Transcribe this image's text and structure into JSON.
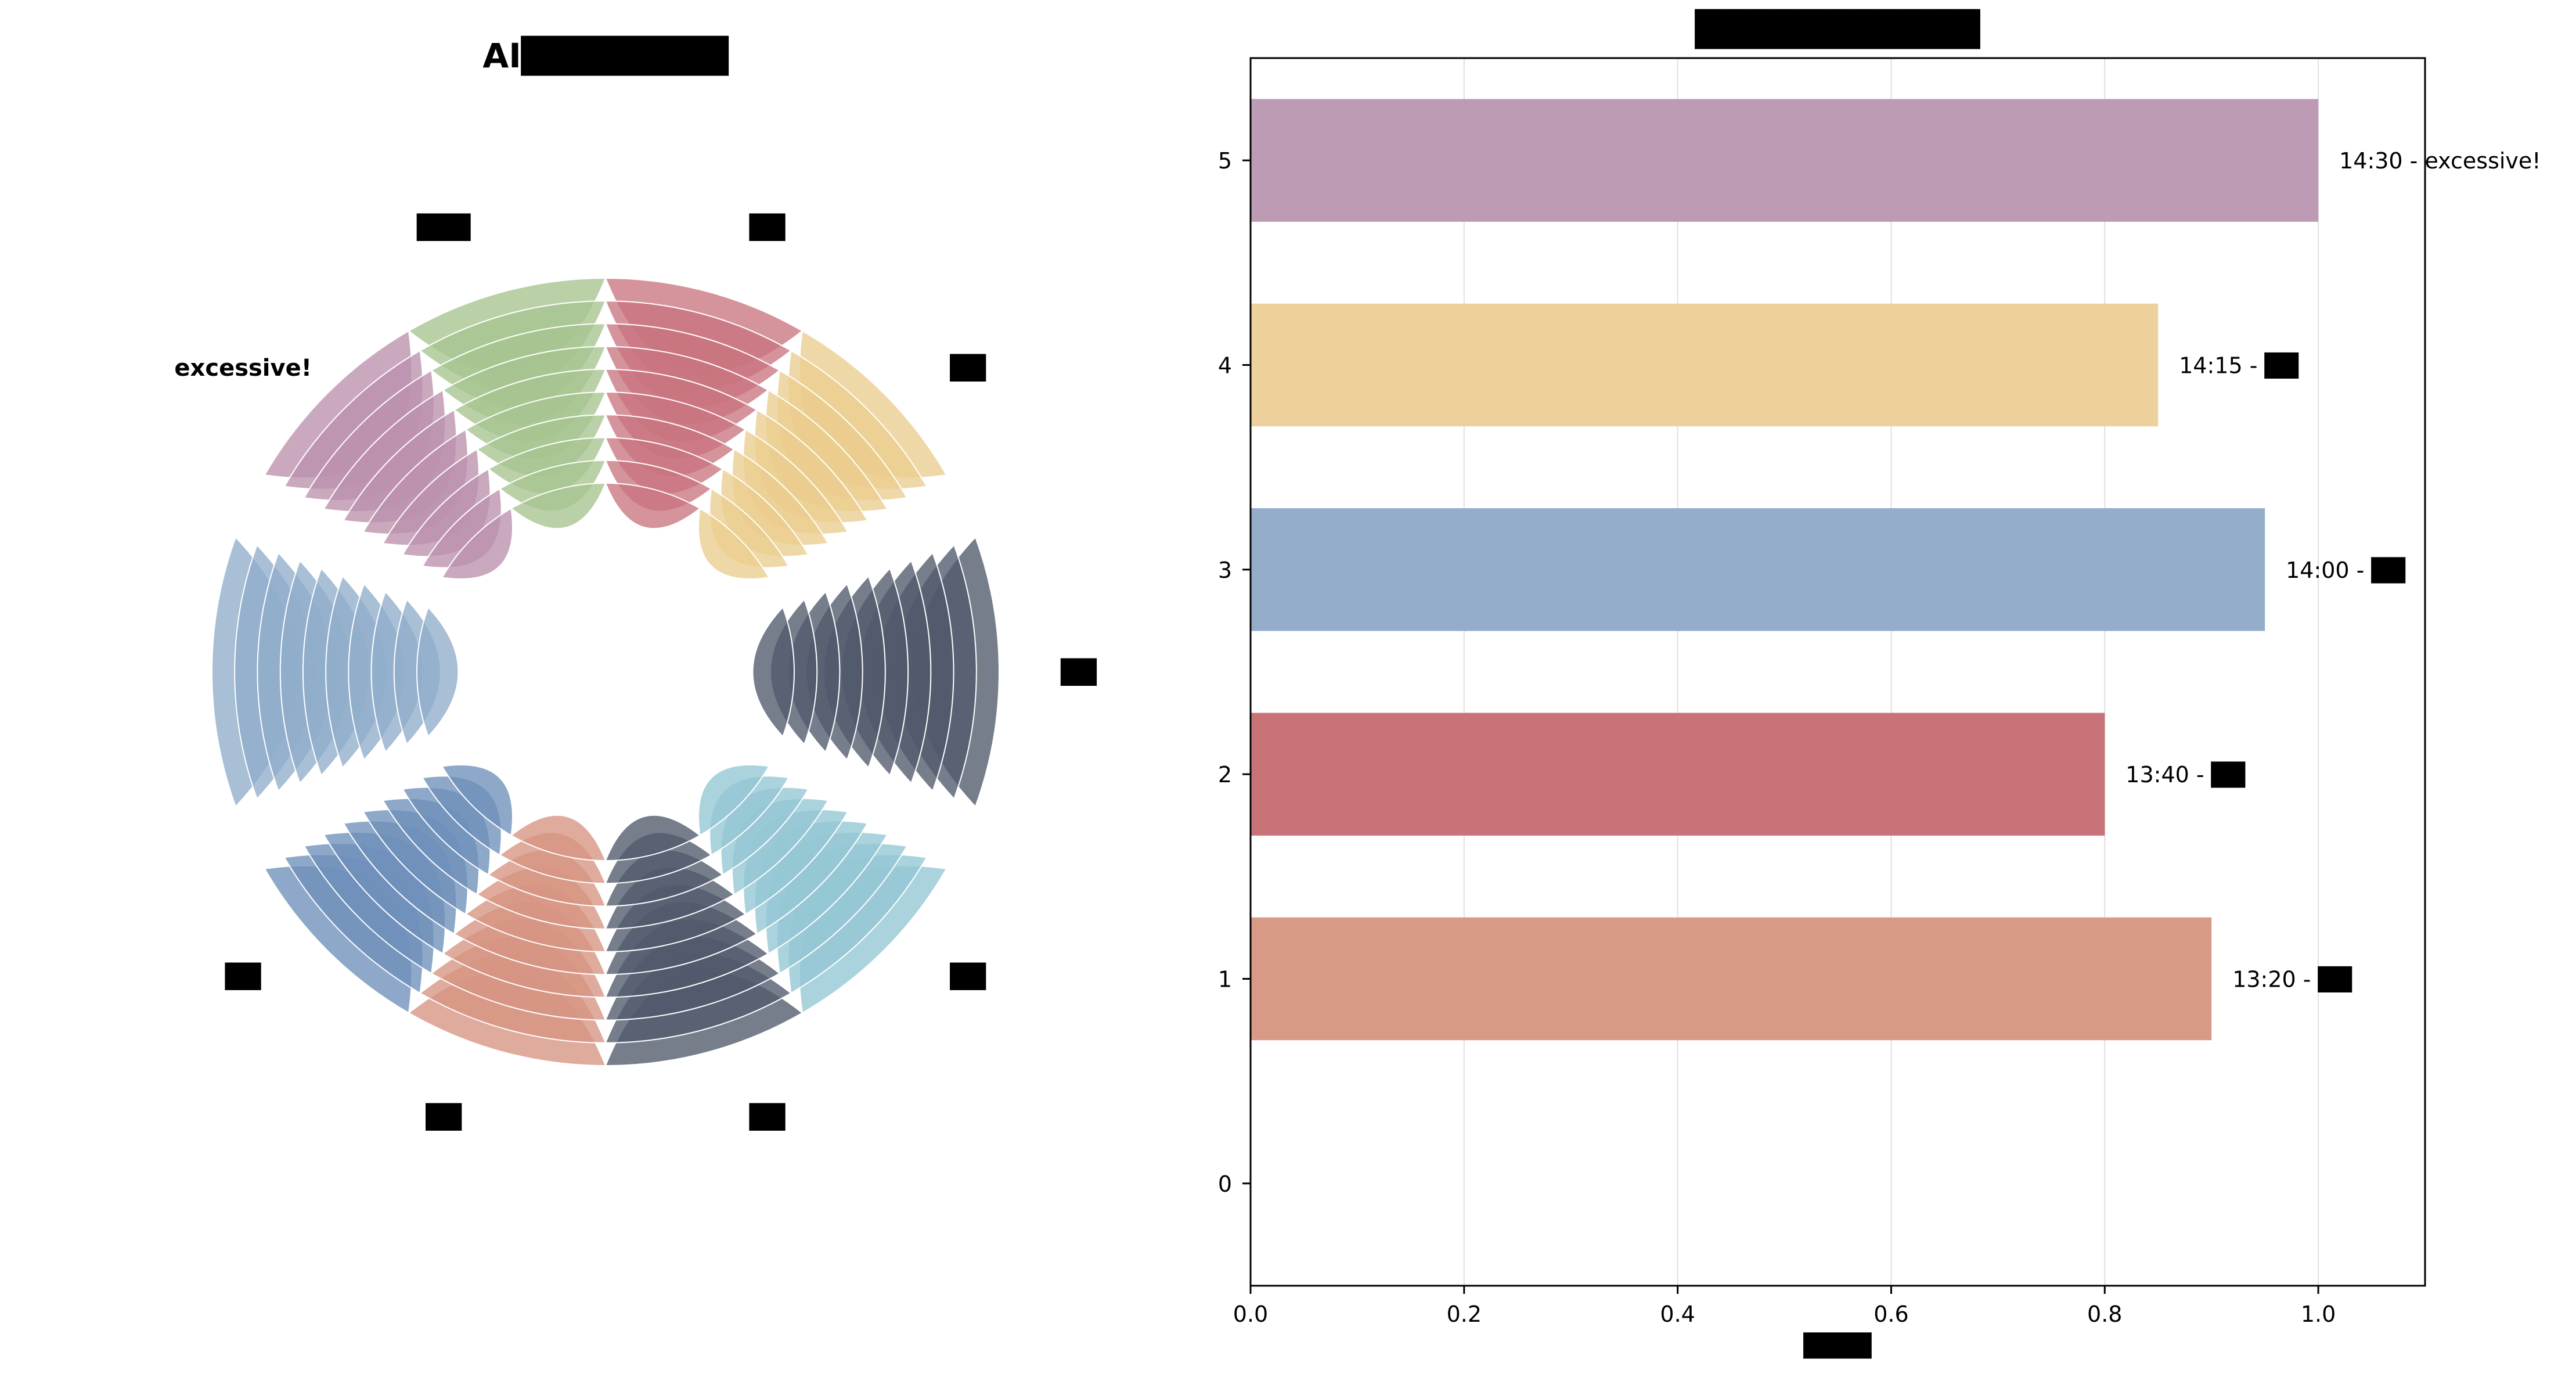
{
  "colors": {
    "axis": "#000000",
    "grid": "#e0e0e0",
    "background": "#ffffff"
  },
  "chart_data": [
    {
      "type": "radial",
      "title": "AI████████",
      "categories": [
        "██",
        "██",
        "██",
        "██",
        "██",
        "██",
        "██",
        "excessive!",
        "███"
      ],
      "highlight": "excessive!",
      "rings": 10,
      "colors": [
        "#c97480",
        "#ebcd8e",
        "#4f5a6b",
        "#94c6d3",
        "#4f5a6b",
        "#d69381",
        "#6e8fba",
        "#8fadca",
        "#bb91ad",
        "#a7c490"
      ]
    },
    {
      "type": "bar",
      "orientation": "horizontal",
      "title": "███████████",
      "xlabel": "████",
      "ylabel": "",
      "xlim": [
        0.0,
        1.1
      ],
      "ylim": [
        -0.5,
        5.5
      ],
      "xticks": [
        "0.0",
        "0.2",
        "0.4",
        "0.6",
        "0.8",
        "1.0"
      ],
      "yticks": [
        "0",
        "1",
        "2",
        "3",
        "4",
        "5"
      ],
      "grid": "vertical",
      "bars": [
        {
          "y": 1,
          "value": 0.9,
          "label": "13:20 - ██",
          "color": "#d69a87"
        },
        {
          "y": 2,
          "value": 0.8,
          "label": "13:40 - ██",
          "color": "#c97379"
        },
        {
          "y": 3,
          "value": 0.95,
          "label": "14:00 - ██",
          "color": "#93adca"
        },
        {
          "y": 4,
          "value": 0.85,
          "label": "14:15 - ██",
          "color": "#eed09c"
        },
        {
          "y": 5,
          "value": 1.0,
          "label": "14:30 - excessive!",
          "color": "#bd9bb5"
        }
      ]
    }
  ]
}
